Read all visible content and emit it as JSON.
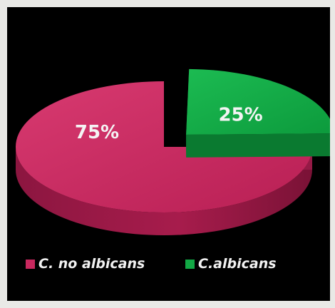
{
  "chart_data": {
    "type": "pie",
    "categories": [
      "C. no albicans",
      "C.albicans"
    ],
    "values": [
      75,
      25
    ],
    "labels": [
      "75%",
      "25%"
    ],
    "colors": [
      "#c8285e",
      "#12a845"
    ],
    "legend": "bottom",
    "exploded": "C.albicans",
    "style": "3d"
  }
}
